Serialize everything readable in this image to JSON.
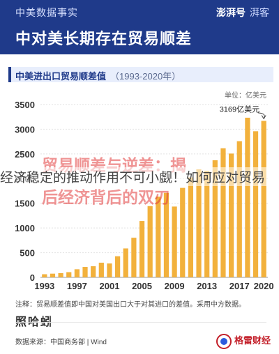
{
  "header": {
    "kicker": "中美数据事实",
    "headline": "中对美长期存在贸易顺差",
    "brand_main": "澎湃号",
    "brand_sub": "湃客"
  },
  "chart_title": {
    "main": "中美进出口贸易顺差值",
    "range": "（1993-2020年）"
  },
  "unit_label": "单位：亿美元",
  "overlay": {
    "red_line_1": "贸易顺差与逆差：揭",
    "text_line": "经济稳定的推动作用不可小觑！如何应对贸易",
    "red_line_2": "后经济背后的双刃"
  },
  "note": "注释：贸易顺差值即中国对美国出口大于对其进口的差值。采用中方数据。",
  "footer": {
    "logo": "照哈蚓",
    "source": "数据来源：中国商务部 | Wind",
    "watermark": "格雷财经"
  },
  "colors": {
    "bar": "#f2b13c",
    "bar_last": "#f2b13c",
    "header_bg": "#1f3a8a"
  },
  "chart_data": {
    "type": "bar",
    "title": "中美进出口贸易顺差值",
    "subtitle": "（1993-2020年）",
    "unit": "亿美元",
    "x": [
      1993,
      1994,
      1995,
      1996,
      1997,
      1998,
      1999,
      2000,
      2001,
      2002,
      2003,
      2004,
      2005,
      2006,
      2007,
      2008,
      2009,
      2010,
      2011,
      2012,
      2013,
      2014,
      2015,
      2016,
      2017,
      2018,
      2019,
      2020
    ],
    "values": [
      63,
      75,
      86,
      105,
      164,
      211,
      225,
      297,
      281,
      427,
      586,
      802,
      1142,
      1443,
      1633,
      1711,
      1434,
      1812,
      2023,
      2189,
      2158,
      2371,
      2614,
      2507,
      2758,
      3233,
      2959,
      3169
    ],
    "x_tick_labels": [
      "1993",
      "1997",
      "2001",
      "2005",
      "2009",
      "2013",
      "2017",
      "2020"
    ],
    "y_ticks": [
      0,
      500,
      1000,
      1500,
      2000,
      2500,
      3000,
      3500
    ],
    "ylim": [
      0,
      3500
    ],
    "annotation": {
      "x": 2020,
      "label": "3169亿美元"
    },
    "grid": true
  }
}
